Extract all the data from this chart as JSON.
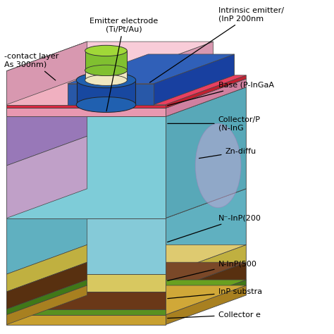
{
  "labels": {
    "emitter_electrode": "Emitter electrode\n(Ti/Pt/Au)",
    "intrinsic_emitter": "Intrinsic emitter/\n(InP 200nm",
    "contact_layer": "-contact layer\nAs 300nm)",
    "base": "Base (P-InGaA",
    "collector_p": "Collector/P\n(N-InG",
    "zn_diff": "Zn-diffu",
    "n_minus_inp": "N⁻-InP(200",
    "n_inp": "N-InP(500",
    "inp_substrate": "InP substra",
    "collector_e": "Collector e"
  },
  "colors": {
    "background": "#ffffff",
    "cyan_front": "#7dccd8",
    "cyan_top": "#a8dce8",
    "cyan_right": "#5bafc0",
    "pink_front": "#f0b0c0",
    "pink_top": "#f8ccd8",
    "pink_right": "#d890a8",
    "blue_dark": "#1848a0",
    "blue_med": "#2a60b0",
    "blue_light": "#4878c0",
    "green_em": "#88cc30",
    "green_top": "#aade40",
    "cream": "#f0e8c0",
    "red_stripe": "#d82840",
    "yellow_layer": "#d8c860",
    "brown_layer": "#6a3818",
    "green_thin": "#589020",
    "gold_collector": "#c8a030",
    "purple_left": "#b898c8",
    "mauve_left": "#c0a8d0",
    "zn_color": "#c8a8d8",
    "outline": "#444444"
  }
}
